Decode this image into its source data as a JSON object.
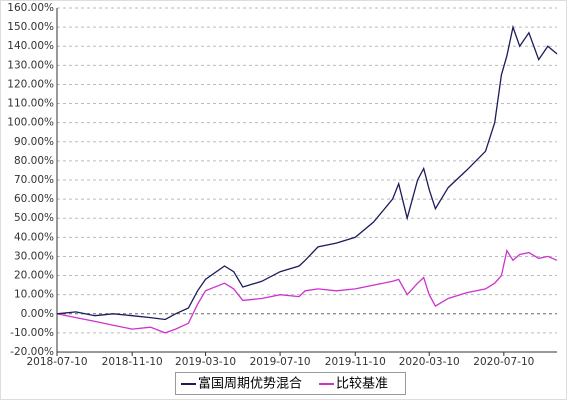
{
  "chart_data": {
    "type": "line",
    "x": [
      "2018-07-10",
      "2018-08-10",
      "2018-09-10",
      "2018-10-10",
      "2018-11-10",
      "2018-12-10",
      "2019-01-03",
      "2019-01-20",
      "2019-02-10",
      "2019-02-25",
      "2019-03-10",
      "2019-04-10",
      "2019-04-25",
      "2019-05-10",
      "2019-06-10",
      "2019-07-10",
      "2019-08-10",
      "2019-08-20",
      "2019-09-10",
      "2019-10-10",
      "2019-11-10",
      "2019-12-10",
      "2020-01-10",
      "2020-01-20",
      "2020-02-03",
      "2020-02-20",
      "2020-03-01",
      "2020-03-10",
      "2020-03-20",
      "2020-04-10",
      "2020-05-10",
      "2020-06-10",
      "2020-06-25",
      "2020-07-06",
      "2020-07-15",
      "2020-07-25",
      "2020-08-05",
      "2020-08-20",
      "2020-09-05",
      "2020-09-20",
      "2020-10-05"
    ],
    "series": [
      {
        "name": "富国周期优势混合",
        "color": "#1c1c5c",
        "values": [
          0,
          1,
          -1,
          0,
          -1,
          -2,
          -3,
          0,
          3,
          12,
          18,
          25,
          22,
          14,
          17,
          22,
          25,
          28,
          35,
          37,
          40,
          48,
          60,
          68,
          50,
          70,
          76,
          65,
          55,
          66,
          75,
          85,
          100,
          125,
          135,
          150,
          140,
          147,
          133,
          140,
          136
        ]
      },
      {
        "name": "比较基准",
        "color": "#cc33cc",
        "values": [
          0,
          -2,
          -4,
          -6,
          -8,
          -7,
          -10,
          -8,
          -5,
          5,
          12,
          16,
          13,
          7,
          8,
          10,
          9,
          12,
          13,
          12,
          13,
          15,
          17,
          18,
          10,
          16,
          19,
          10,
          4,
          8,
          11,
          13,
          16,
          20,
          33,
          28,
          31,
          32,
          29,
          30,
          28
        ]
      }
    ],
    "xlim": [
      "2018-07-10",
      "2020-10-05"
    ],
    "xticks": [
      "2018-07-10",
      "2018-11-10",
      "2019-03-10",
      "2019-07-10",
      "2019-11-10",
      "2020-03-10",
      "2020-07-10"
    ],
    "ylim": [
      -20,
      160
    ],
    "yticks": [
      {
        "value": -20,
        "label": "-20.00%"
      },
      {
        "value": -10,
        "label": "-10.00%"
      },
      {
        "value": 0,
        "label": "0.00%"
      },
      {
        "value": 10,
        "label": "10.00%"
      },
      {
        "value": 20,
        "label": "20.00%"
      },
      {
        "value": 30,
        "label": "30.00%"
      },
      {
        "value": 40,
        "label": "40.00%"
      },
      {
        "value": 50,
        "label": "50.00%"
      },
      {
        "value": 60,
        "label": "60.00%"
      },
      {
        "value": 70,
        "label": "70.00%"
      },
      {
        "value": 80,
        "label": "80.00%"
      },
      {
        "value": 90,
        "label": "90.00%"
      },
      {
        "value": 100,
        "label": "100.00%"
      },
      {
        "value": 110,
        "label": "110.00%"
      },
      {
        "value": 120,
        "label": "120.00%"
      },
      {
        "value": 130,
        "label": "130.00%"
      },
      {
        "value": 140,
        "label": "140.00%"
      },
      {
        "value": 150,
        "label": "150.00%"
      },
      {
        "value": 160,
        "label": "160.00%"
      }
    ],
    "grid": true
  }
}
